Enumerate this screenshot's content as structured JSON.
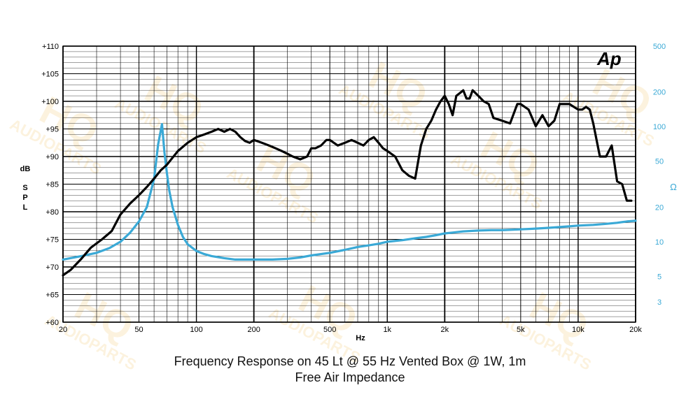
{
  "colors": {
    "spl": "#000000",
    "impedance": "#3aa9d6",
    "grid": "#000000",
    "watermark": "#f5d48a"
  },
  "logo_text": "Ap",
  "watermark_text": [
    "HQ",
    "AUDIOPARTS"
  ],
  "captions": {
    "line1": "Frequency Response on 45 Lt @ 55 Hz Vented Box @ 1W, 1m",
    "line2": "Free Air Impedance"
  },
  "chart_data": {
    "type": "line",
    "xscale": "log",
    "xlim": [
      20,
      20000
    ],
    "xlabel": "Hz",
    "x_tick_labels": [
      "20",
      "50",
      "100",
      "200",
      "500",
      "1k",
      "2k",
      "5k",
      "10k",
      "20k"
    ],
    "x_ticks": [
      20,
      50,
      100,
      200,
      500,
      1000,
      2000,
      5000,
      10000,
      20000
    ],
    "left_axis": {
      "label": [
        "dB",
        "S",
        "P",
        "L"
      ],
      "ylim": [
        60,
        110
      ],
      "ticks": [
        110,
        105,
        100,
        95,
        90,
        85,
        80,
        75,
        70,
        65,
        60
      ],
      "tick_labels": [
        "+110",
        "+105",
        "+100",
        "+95",
        "+90",
        "+85",
        "+80",
        "+75",
        "+70",
        "+65",
        "+60"
      ]
    },
    "right_axis": {
      "label": "Ω",
      "scale": "log",
      "ylim": [
        2,
        500
      ],
      "ticks": [
        500,
        200,
        100,
        50,
        20,
        10,
        5,
        3
      ],
      "tick_labels": [
        "500",
        "200",
        "100",
        "50",
        "20",
        "10",
        "5",
        "3"
      ]
    },
    "grid": true,
    "series": [
      {
        "axis": "left",
        "x": [
          20,
          22,
          25,
          28,
          32,
          36,
          40,
          45,
          50,
          55,
          60,
          65,
          70,
          80,
          90,
          100,
          110,
          120,
          130,
          140,
          150,
          160,
          170,
          180,
          190,
          200,
          220,
          240,
          260,
          280,
          300,
          320,
          350,
          380,
          400,
          420,
          450,
          480,
          500,
          550,
          600,
          650,
          700,
          750,
          800,
          850,
          900,
          950,
          1000,
          1100,
          1200,
          1300,
          1400,
          1500,
          1600,
          1700,
          1800,
          1900,
          2000,
          2100,
          2200,
          2300,
          2400,
          2500,
          2600,
          2700,
          2800,
          3000,
          3200,
          3400,
          3600,
          4000,
          4400,
          4800,
          5000,
          5500,
          6000,
          6500,
          7000,
          7500,
          8000,
          8500,
          9000,
          10000,
          10500,
          11000,
          11500,
          12000,
          13000,
          14000,
          15000,
          16000,
          17000,
          18000,
          19000
        ],
        "y": [
          68.5,
          69.5,
          71.5,
          73.5,
          75.0,
          76.5,
          79.5,
          81.5,
          83.0,
          84.5,
          86.0,
          87.5,
          88.5,
          91.0,
          92.5,
          93.5,
          94.0,
          94.5,
          95.0,
          94.5,
          95.0,
          94.5,
          93.5,
          92.8,
          92.5,
          93.0,
          92.5,
          92.0,
          91.5,
          91.0,
          90.5,
          90.0,
          89.5,
          90.0,
          91.5,
          91.5,
          92.0,
          93.0,
          93.0,
          92.0,
          92.5,
          93.0,
          92.5,
          92.0,
          93.0,
          93.5,
          92.5,
          91.5,
          91.0,
          90.0,
          87.5,
          86.5,
          86.0,
          92.0,
          95.0,
          96.5,
          98.5,
          100.0,
          101.0,
          99.5,
          97.5,
          101.0,
          101.5,
          102.0,
          100.5,
          100.5,
          102.0,
          101.0,
          100.0,
          99.5,
          97.0,
          96.5,
          96.0,
          99.5,
          99.5,
          98.5,
          95.5,
          97.5,
          95.5,
          96.5,
          99.5,
          99.5,
          99.5,
          98.5,
          98.5,
          99.0,
          98.5,
          96.0,
          90.0,
          90.0,
          92.0,
          85.5,
          85.0,
          82.0,
          82.0
        ]
      },
      {
        "axis": "right",
        "x": [
          20,
          25,
          30,
          35,
          40,
          45,
          50,
          55,
          60,
          63,
          66,
          68,
          70,
          72,
          75,
          80,
          85,
          90,
          100,
          110,
          120,
          140,
          160,
          180,
          200,
          250,
          300,
          350,
          400,
          500,
          600,
          700,
          800,
          900,
          1000,
          1200,
          1400,
          1600,
          1800,
          2000,
          2200,
          2500,
          3000,
          3500,
          4000,
          5000,
          6000,
          7000,
          8000,
          9000,
          10000,
          12000,
          14000,
          16000,
          18000,
          20000
        ],
        "y": [
          7.0,
          7.5,
          8.0,
          8.8,
          10.0,
          12.0,
          15.0,
          20.0,
          35.0,
          70.0,
          105.0,
          60.0,
          40.0,
          28.0,
          20.0,
          14.0,
          11.0,
          9.5,
          8.3,
          7.8,
          7.5,
          7.2,
          7.0,
          7.0,
          7.0,
          7.0,
          7.1,
          7.3,
          7.6,
          8.0,
          8.5,
          9.0,
          9.3,
          9.6,
          10.0,
          10.3,
          10.7,
          11.0,
          11.4,
          11.8,
          12.0,
          12.3,
          12.5,
          12.6,
          12.6,
          12.8,
          13.0,
          13.2,
          13.4,
          13.6,
          13.8,
          14.0,
          14.3,
          14.6,
          15.0,
          15.2
        ]
      }
    ]
  }
}
